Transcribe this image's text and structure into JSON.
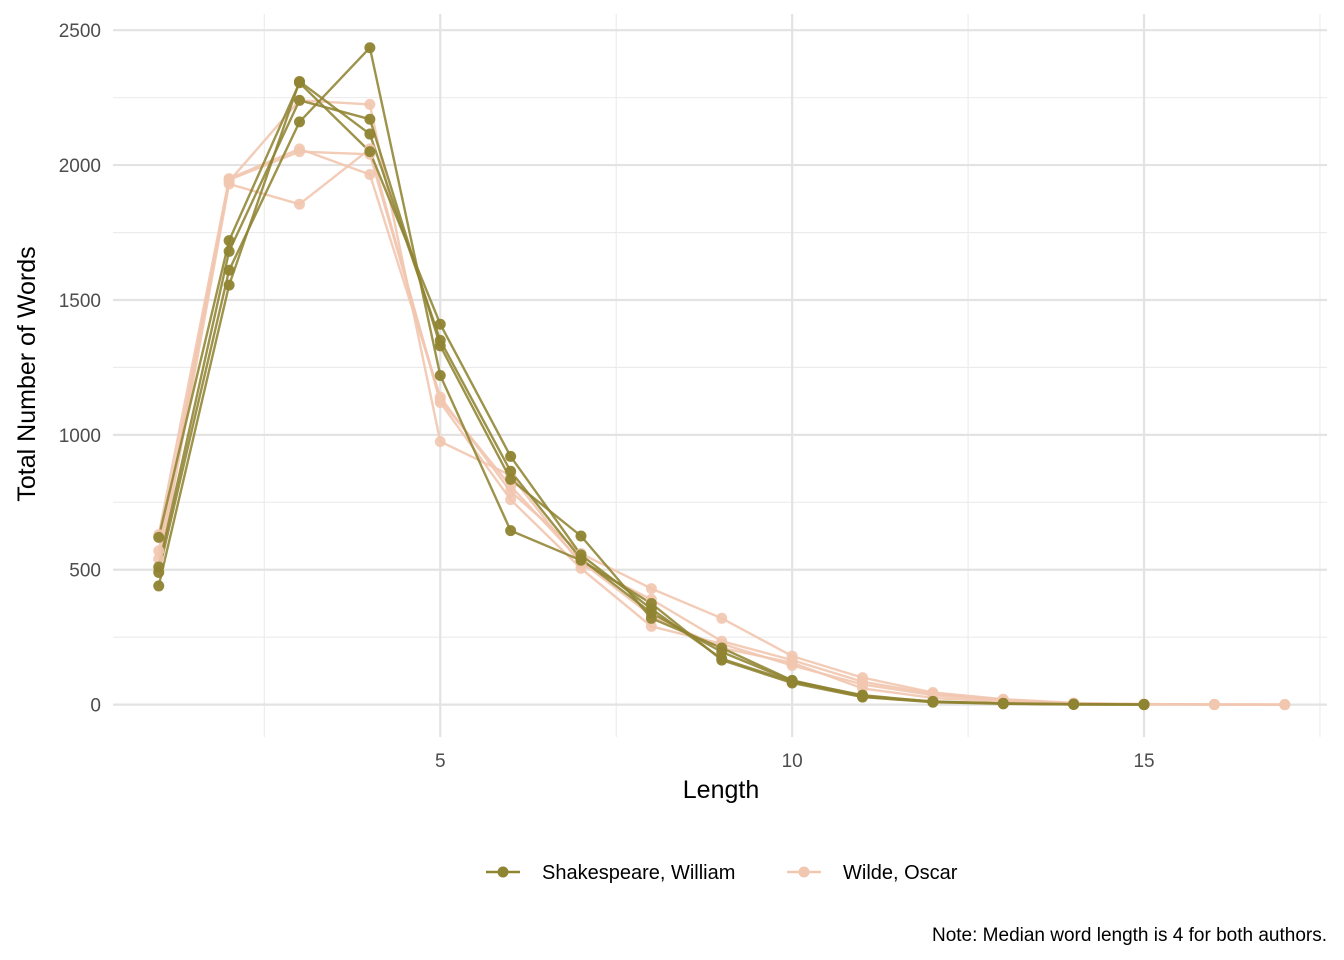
{
  "chart_data": {
    "type": "line",
    "xlabel": "Length",
    "ylabel": "Total Number of Words",
    "caption": "Note: Median word length is 4 for both authors.",
    "xlim": [
      0.35,
      17.6
    ],
    "ylim": [
      -120,
      2560
    ],
    "x_ticks": [
      5,
      10,
      15
    ],
    "x_tick_labels": [
      "5",
      "10",
      "15"
    ],
    "x_minor_ticks": [
      2.5,
      7.5,
      12.5,
      17.5
    ],
    "y_ticks": [
      0,
      500,
      1000,
      1500,
      2000,
      2500
    ],
    "y_tick_labels": [
      "0",
      "500",
      "1000",
      "1500",
      "2000",
      "2500"
    ],
    "y_minor_ticks": [
      250,
      750,
      1250,
      1750,
      2250
    ],
    "grid": true,
    "legend_position": "bottom",
    "legend": [
      {
        "label": "Shakespeare, William",
        "color": "#8f8432"
      },
      {
        "label": "Wilde, Oscar",
        "color": "#f2c7b0"
      }
    ],
    "series": [
      {
        "group": "Wilde, Oscar",
        "color": "#f2c7b0",
        "x": [
          1,
          2,
          3,
          4,
          5,
          6,
          7,
          8,
          9,
          10,
          11,
          12,
          13,
          14,
          15,
          16,
          17
        ],
        "y": [
          630,
          1950,
          2060,
          1965,
          1140,
          790,
          560,
          430,
          320,
          180,
          100,
          45,
          20,
          6,
          2,
          1,
          0
        ]
      },
      {
        "group": "Wilde, Oscar",
        "color": "#f2c7b0",
        "x": [
          1,
          2,
          3,
          4,
          5,
          6,
          7,
          8,
          9,
          10,
          11,
          12,
          13,
          14,
          15,
          16,
          17
        ],
        "y": [
          570,
          1940,
          2240,
          2225,
          975,
          850,
          520,
          390,
          235,
          165,
          85,
          40,
          18,
          5,
          2,
          1,
          0
        ]
      },
      {
        "group": "Wilde, Oscar",
        "color": "#f2c7b0",
        "x": [
          1,
          2,
          3,
          4,
          5,
          6,
          7,
          8,
          9,
          10,
          11,
          12,
          13,
          14,
          15,
          16,
          17
        ],
        "y": [
          500,
          1930,
          1855,
          2060,
          1120,
          760,
          505,
          290,
          225,
          145,
          75,
          35,
          15,
          4,
          1,
          0,
          0
        ]
      },
      {
        "group": "Wilde, Oscar",
        "color": "#f2c7b0",
        "x": [
          1,
          2,
          3,
          4,
          5,
          6,
          7,
          8,
          9,
          10,
          11,
          12,
          13,
          14,
          15,
          16,
          17
        ],
        "y": [
          540,
          1945,
          2050,
          2040,
          1130,
          810,
          530,
          330,
          210,
          155,
          60,
          25,
          10,
          3,
          1,
          0,
          0
        ]
      },
      {
        "group": "Shakespeare, William",
        "color": "#8f8432",
        "x": [
          1,
          2,
          3,
          4,
          5,
          6,
          7,
          8,
          9,
          10,
          11,
          12,
          13,
          14,
          15
        ],
        "y": [
          620,
          1720,
          2305,
          2050,
          1410,
          920,
          555,
          355,
          170,
          85,
          30,
          10,
          5,
          2,
          1
        ]
      },
      {
        "group": "Shakespeare, William",
        "color": "#8f8432",
        "x": [
          1,
          2,
          3,
          4,
          5,
          6,
          7,
          8,
          9,
          10,
          11,
          12,
          13,
          14,
          15
        ],
        "y": [
          510,
          1680,
          2240,
          2170,
          1330,
          835,
          625,
          320,
          210,
          90,
          32,
          12,
          4,
          1,
          0
        ]
      },
      {
        "group": "Shakespeare, William",
        "color": "#8f8432",
        "x": [
          1,
          2,
          3,
          4,
          5,
          6,
          7,
          8,
          9,
          10,
          11,
          12,
          13,
          14,
          15
        ],
        "y": [
          490,
          1610,
          2160,
          2435,
          1220,
          645,
          535,
          375,
          165,
          80,
          28,
          9,
          3,
          1,
          0
        ]
      },
      {
        "group": "Shakespeare, William",
        "color": "#8f8432",
        "x": [
          1,
          2,
          3,
          4,
          5,
          6,
          7,
          8,
          9,
          10,
          11,
          12,
          13,
          14,
          15
        ],
        "y": [
          440,
          1555,
          2310,
          2115,
          1350,
          865,
          540,
          340,
          195,
          88,
          35,
          11,
          4,
          1,
          0
        ]
      }
    ]
  }
}
